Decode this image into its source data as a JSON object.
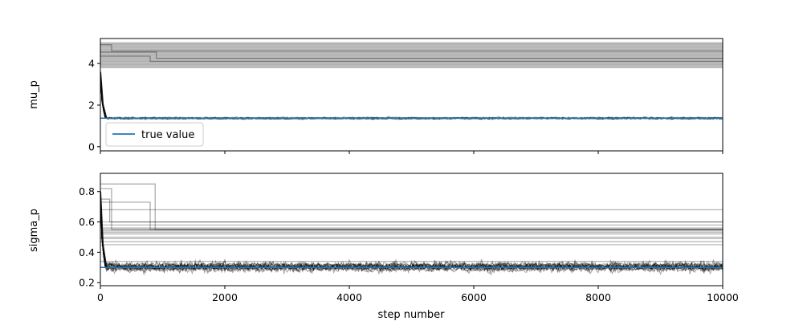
{
  "chart_data": [
    {
      "type": "line",
      "title": "",
      "xlabel": "",
      "ylabel": "mu_p",
      "xlim": [
        0,
        10000
      ],
      "ylim": [
        -0.2,
        5.2
      ],
      "yticks": [
        "0",
        "2",
        "4"
      ],
      "xticks": [
        0,
        2000,
        4000,
        6000,
        8000,
        10000
      ],
      "show_xtick_labels": false,
      "true_value": 1.37,
      "legend": {
        "label": "true value",
        "color": "#1f77b4",
        "placement": "lower-left"
      },
      "walker_color": "#000000",
      "stuck_levels": [
        3.8,
        3.85,
        3.9,
        3.95,
        4.0,
        4.05,
        4.1,
        4.15,
        4.2,
        4.25,
        4.3,
        4.35,
        4.4,
        4.45,
        4.5,
        4.55,
        4.6,
        4.65,
        4.7,
        4.75,
        4.8,
        4.85,
        4.9,
        4.95,
        5.0
      ],
      "converged_center": 1.37,
      "converged_spread": 0.04,
      "burn_in_steps": 80,
      "burn_in_start": 3.6,
      "stuck_transitions": [
        {
          "from": 4.55,
          "to": 4.25,
          "step": 900
        },
        {
          "from": 4.9,
          "to": 4.6,
          "step": 180
        },
        {
          "from": 4.35,
          "to": 4.1,
          "step": 800
        }
      ]
    },
    {
      "type": "line",
      "title": "",
      "xlabel": "step number",
      "ylabel": "sigma_p",
      "xlim": [
        0,
        10000
      ],
      "ylim": [
        0.18,
        0.92
      ],
      "yticks": [
        "0.2",
        "0.4",
        "0.6",
        "0.8"
      ],
      "xticks": [
        "0",
        "2000",
        "4000",
        "6000",
        "8000",
        "10000"
      ],
      "show_xtick_labels": true,
      "true_value": 0.3,
      "walker_color": "#000000",
      "stuck_levels": [
        0.45,
        0.47,
        0.49,
        0.5,
        0.52,
        0.53,
        0.54,
        0.55,
        0.56,
        0.58,
        0.6,
        0.68,
        0.34
      ],
      "converged_center": 0.3,
      "converged_spread": 0.025,
      "burn_in_steps": 80,
      "burn_in_start": 0.8,
      "stuck_transitions": [
        {
          "from": 0.85,
          "to": 0.55,
          "step": 880
        },
        {
          "from": 0.82,
          "to": 0.55,
          "step": 180
        },
        {
          "from": 0.73,
          "to": 0.55,
          "step": 800
        },
        {
          "from": 0.75,
          "to": 0.6,
          "step": 150
        }
      ]
    }
  ]
}
